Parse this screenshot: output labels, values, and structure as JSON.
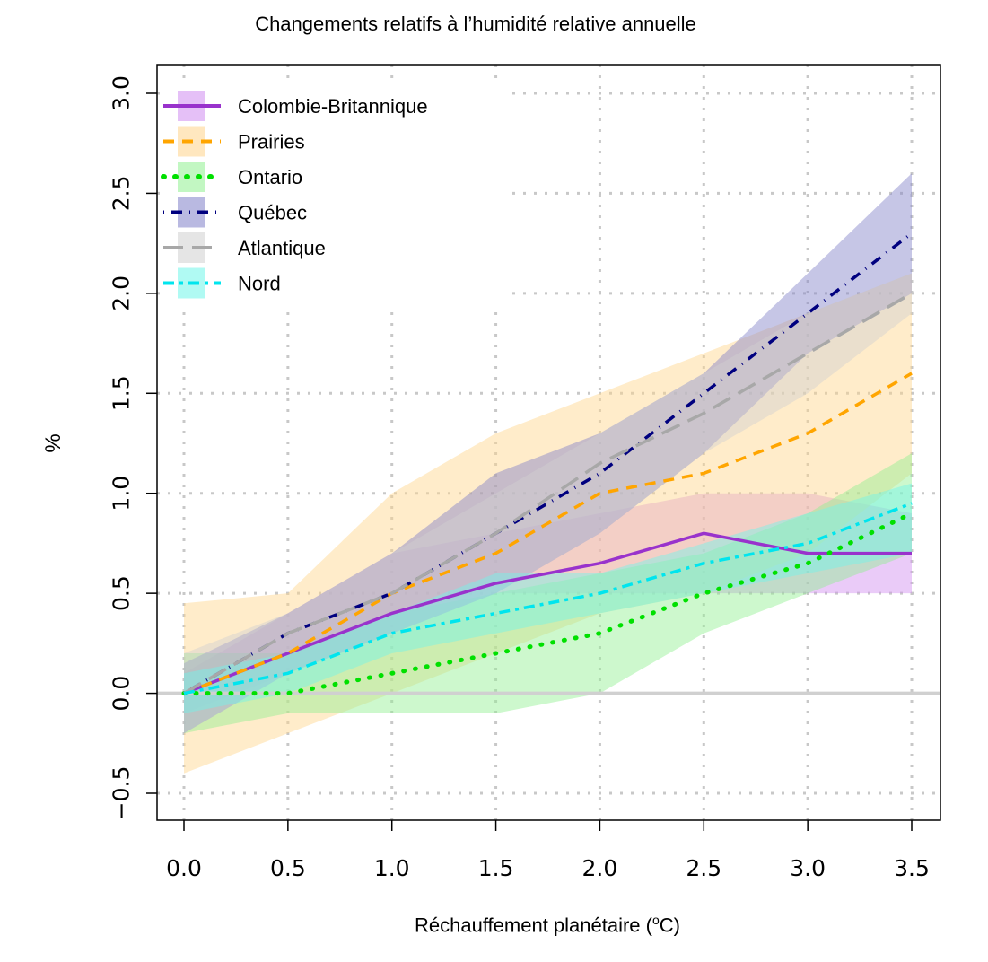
{
  "chart_data": {
    "type": "line",
    "title": "Changements relatifs à l’humidité relative annuelle",
    "xlabel": "Réchauffement planétaire (°C)",
    "xlabel_parts": {
      "before": "Réchauffement planétaire (",
      "sup": "o",
      "after": "C)"
    },
    "ylabel": "%",
    "xlim": [
      0.0,
      3.5
    ],
    "ylim": [
      -0.5,
      3.0
    ],
    "x_ticks": [
      "0.0",
      "0.5",
      "1.0",
      "1.5",
      "2.0",
      "2.5",
      "3.0",
      "3.5"
    ],
    "y_ticks": [
      "−0.5",
      "0.0",
      "0.5",
      "1.0",
      "1.5",
      "2.0",
      "2.5",
      "3.0"
    ],
    "grid": true,
    "legend_position": "top-left",
    "x": [
      0.0,
      0.5,
      1.0,
      1.5,
      2.0,
      2.5,
      3.0,
      3.5
    ],
    "series": [
      {
        "name": "Colombie-Britannique",
        "color": "#9932cc",
        "band_color": "#d08cf0",
        "style": "solid",
        "values": [
          0.0,
          0.2,
          0.4,
          0.55,
          0.65,
          0.8,
          0.7,
          0.7
        ],
        "lower": [
          -0.1,
          0.1,
          0.3,
          0.5,
          0.5,
          0.5,
          0.5,
          0.5
        ],
        "upper": [
          0.1,
          0.4,
          0.7,
          0.8,
          0.9,
          1.0,
          1.0,
          0.9
        ]
      },
      {
        "name": "Prairies",
        "color": "#ffa500",
        "band_color": "#ffd48a",
        "style": "dashed",
        "values": [
          0.0,
          0.2,
          0.5,
          0.7,
          1.0,
          1.1,
          1.3,
          1.6
        ],
        "lower": [
          -0.4,
          -0.2,
          0.0,
          0.2,
          0.4,
          0.5,
          0.7,
          1.1
        ],
        "upper": [
          0.45,
          0.5,
          1.0,
          1.3,
          1.5,
          1.7,
          1.9,
          2.1
        ]
      },
      {
        "name": "Ontario",
        "color": "#00e000",
        "band_color": "#90f090",
        "style": "dotted",
        "values": [
          0.0,
          0.0,
          0.1,
          0.2,
          0.3,
          0.5,
          0.65,
          0.9
        ],
        "lower": [
          -0.2,
          -0.1,
          -0.1,
          -0.1,
          0.0,
          0.3,
          0.5,
          0.7
        ],
        "upper": [
          0.2,
          0.2,
          0.4,
          0.5,
          0.6,
          0.7,
          0.9,
          1.2
        ]
      },
      {
        "name": "Québec",
        "color": "#00007f",
        "band_color": "#8080c8",
        "style": "dotdash",
        "values": [
          0.0,
          0.3,
          0.5,
          0.8,
          1.1,
          1.5,
          1.9,
          2.3
        ],
        "lower": [
          -0.2,
          0.1,
          0.3,
          0.5,
          0.8,
          1.2,
          1.7,
          2.0
        ],
        "upper": [
          0.15,
          0.4,
          0.7,
          1.1,
          1.3,
          1.6,
          2.1,
          2.6
        ]
      },
      {
        "name": "Atlantique",
        "color": "#a8a8a8",
        "band_color": "#d0d0d0",
        "style": "longdash",
        "values": [
          0.0,
          0.3,
          0.5,
          0.8,
          1.15,
          1.4,
          1.7,
          2.0
        ],
        "lower": [
          -0.2,
          0.1,
          0.3,
          0.5,
          0.8,
          1.2,
          1.5,
          1.9
        ],
        "upper": [
          0.2,
          0.4,
          0.7,
          1.0,
          1.3,
          1.6,
          1.9,
          2.1
        ]
      },
      {
        "name": "Nord",
        "color": "#00e5ee",
        "band_color": "#70f5ea",
        "style": "twodash",
        "values": [
          0.0,
          0.1,
          0.3,
          0.4,
          0.5,
          0.65,
          0.75,
          0.95
        ],
        "lower": [
          -0.1,
          0.0,
          0.2,
          0.3,
          0.4,
          0.5,
          0.6,
          0.7
        ],
        "upper": [
          0.1,
          0.2,
          0.4,
          0.6,
          0.6,
          0.75,
          0.9,
          1.05
        ]
      }
    ]
  }
}
